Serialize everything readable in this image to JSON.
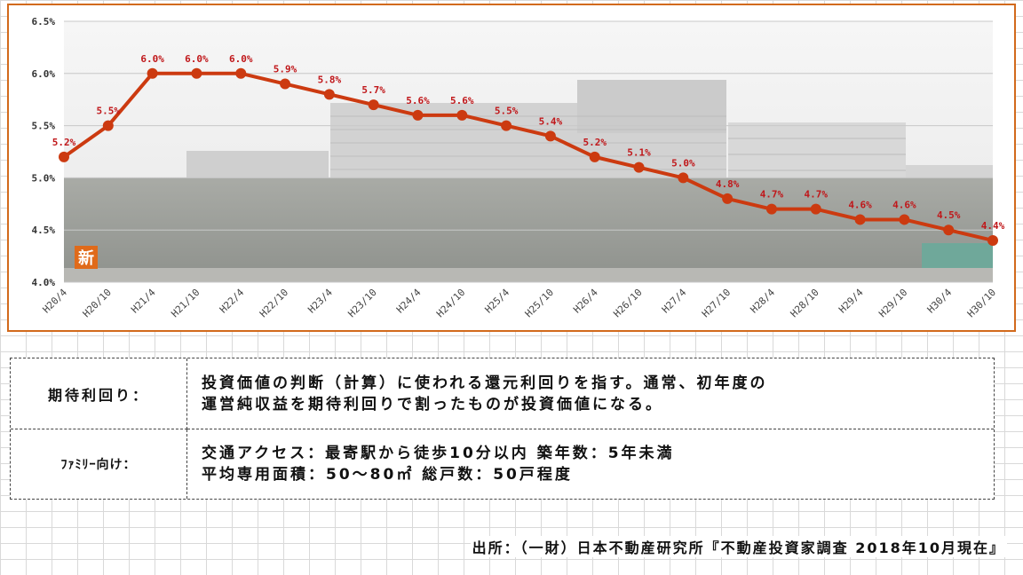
{
  "chart_data": {
    "type": "line",
    "categories": [
      "H20/4",
      "H20/10",
      "H21/4",
      "H21/10",
      "H22/4",
      "H22/10",
      "H23/4",
      "H23/10",
      "H24/4",
      "H24/10",
      "H25/4",
      "H25/10",
      "H26/4",
      "H26/10",
      "H27/4",
      "H27/10",
      "H28/4",
      "H28/10",
      "H29/4",
      "H29/10",
      "H30/4",
      "H30/10"
    ],
    "values": [
      5.2,
      5.5,
      6.0,
      6.0,
      6.0,
      5.9,
      5.8,
      5.7,
      5.6,
      5.6,
      5.5,
      5.4,
      5.2,
      5.1,
      5.0,
      4.8,
      4.7,
      4.7,
      4.6,
      4.6,
      4.5,
      4.4
    ],
    "data_labels": [
      "5.2%",
      "5.5%",
      "6.0%",
      "6.0%",
      "6.0%",
      "5.9%",
      "5.8%",
      "5.7%",
      "5.6%",
      "5.6%",
      "5.5%",
      "5.4%",
      "5.2%",
      "5.1%",
      "5.0%",
      "4.8%",
      "4.7%",
      "4.7%",
      "4.6%",
      "4.6%",
      "4.5%",
      "4.4%"
    ],
    "ylim": [
      4.0,
      6.5
    ],
    "yticks": [
      4.0,
      4.5,
      5.0,
      5.5,
      6.0,
      6.5
    ],
    "ytick_labels": [
      "4.0%",
      "4.5%",
      "5.0%",
      "5.5%",
      "6.0%",
      "6.5%"
    ],
    "line_color": "#cc3a10",
    "label_color": "#c0171a",
    "title": "",
    "xlabel": "",
    "ylabel": ""
  },
  "badge": {
    "text": "新"
  },
  "definitions": [
    {
      "term": "期待利回り：",
      "lines": [
        "投資価値の判断（計算）に使われる還元利回りを指す。通常、初年度の",
        "運営純収益を期待利回りで割ったものが投資価値になる。"
      ]
    },
    {
      "term": "ﾌｧﾐﾘｰ向け：",
      "lines": [
        "交通アクセス：最寄駅から徒歩10分以内 築年数：5年未満",
        "平均専用面積：50～80㎡ 総戸数：50戸程度"
      ]
    }
  ],
  "source": "出所：（一財）日本不動産研究所『不動産投資家調査 2018年10月現在』"
}
